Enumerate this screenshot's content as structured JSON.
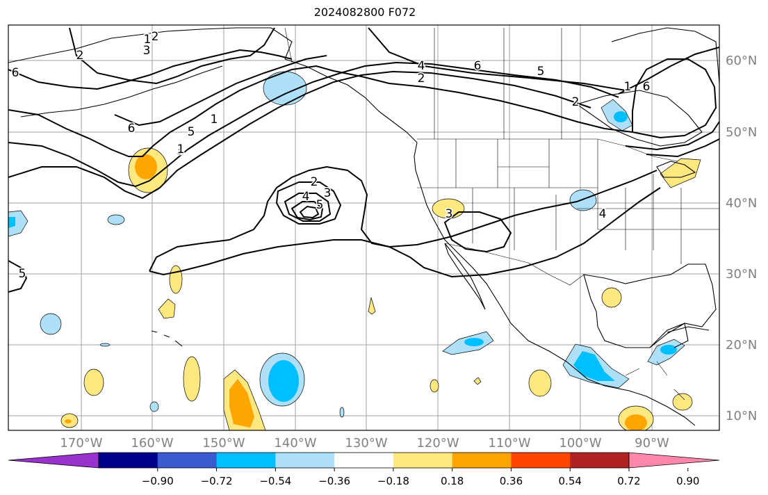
{
  "title": "2024082800 F072",
  "lon_ticks": [
    "170°W",
    "160°W",
    "150°W",
    "140°W",
    "130°W",
    "120°W",
    "110°W",
    "100°W",
    "90°W"
  ],
  "lat_ticks": [
    "60°N",
    "50°N",
    "40°N",
    "30°N",
    "20°N",
    "10°N"
  ],
  "colorbar": {
    "colors": [
      "#9932cc",
      "#00008b",
      "#3a5bd0",
      "#00bfff",
      "#aee0fa",
      "#ffffff",
      "#ffe880",
      "#ffa500",
      "#ff4500",
      "#b22222",
      "#ff88aa"
    ],
    "tick_labels": [
      "−0.90",
      "−0.72",
      "−0.54",
      "−0.36",
      "−0.18",
      "0.18",
      "0.36",
      "0.54",
      "0.72",
      "0.90"
    ],
    "extend": "both"
  },
  "contour_labels": [
    "2",
    "3",
    "6",
    "2",
    "4",
    "6",
    "5",
    "2",
    "5",
    "6",
    "6",
    "3",
    "3",
    "4",
    "5",
    "2",
    "3",
    "4",
    "5",
    "2",
    "1",
    "1",
    "1",
    "1"
  ],
  "colors": {
    "contour": "#000000",
    "grid": "#a0a0a0",
    "coast": "#000000",
    "tick_label": "#808080"
  }
}
